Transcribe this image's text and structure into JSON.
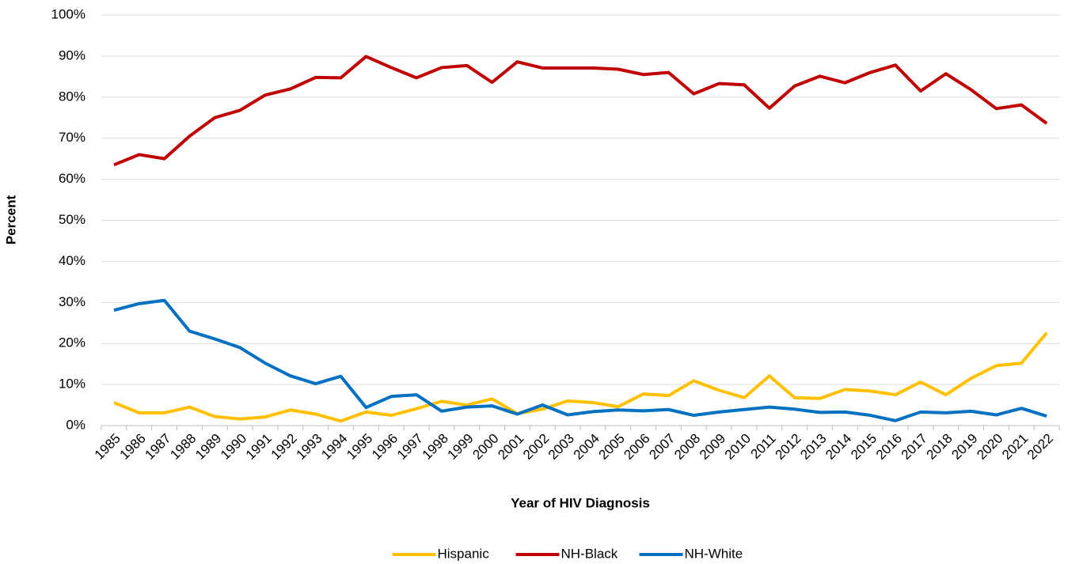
{
  "chart_data": {
    "type": "line",
    "x_label": "Year of HIV Diagnosis",
    "y_label": "Percent",
    "categories": [
      "1985",
      "1986",
      "1987",
      "1988",
      "1989",
      "1990",
      "1991",
      "1992",
      "1993",
      "1994",
      "1995",
      "1996",
      "1997",
      "1998",
      "1999",
      "2000",
      "2001",
      "2002",
      "2003",
      "2004",
      "2005",
      "2006",
      "2007",
      "2008",
      "2009",
      "2010",
      "2011",
      "2012",
      "2013",
      "2014",
      "2015",
      "2016",
      "2017",
      "2018",
      "2019",
      "2020",
      "2021",
      "2022"
    ],
    "series": [
      {
        "name": "Hispanic",
        "color": "#ffc000",
        "values": [
          5.6,
          3.1,
          3.1,
          4.5,
          2.2,
          1.6,
          2.1,
          3.8,
          2.8,
          1.1,
          3.3,
          2.5,
          4.1,
          5.9,
          5.0,
          6.5,
          2.9,
          4.0,
          6.0,
          5.6,
          4.6,
          7.7,
          7.3,
          10.9,
          8.6,
          6.8,
          12.1,
          6.8,
          6.6,
          8.8,
          8.4,
          7.5,
          10.6,
          7.5,
          11.5,
          14.6,
          15.2,
          22.6
        ]
      },
      {
        "name": "NH-Black",
        "color": "#c00000",
        "values": [
          63.5,
          66.0,
          65.0,
          70.5,
          75.0,
          76.8,
          80.5,
          82.0,
          84.8,
          84.7,
          89.9,
          87.2,
          84.7,
          87.2,
          87.7,
          83.6,
          88.6,
          87.1,
          87.1,
          87.1,
          86.8,
          85.5,
          86.0,
          80.8,
          83.3,
          83.0,
          77.3,
          82.7,
          85.1,
          83.5,
          86.0,
          87.8,
          81.5,
          85.7,
          81.8,
          77.2,
          78.1,
          73.6
        ]
      },
      {
        "name": "NH-White",
        "color": "#0070c0",
        "values": [
          28.1,
          29.7,
          30.5,
          23.0,
          21.1,
          19.0,
          15.2,
          12.1,
          10.2,
          12.0,
          4.4,
          7.1,
          7.5,
          3.5,
          4.5,
          4.8,
          2.8,
          5.0,
          2.6,
          3.4,
          3.8,
          3.6,
          3.9,
          2.5,
          3.3,
          3.9,
          4.5,
          4.0,
          3.2,
          3.3,
          2.5,
          1.2,
          3.3,
          3.1,
          3.5,
          2.6,
          4.2,
          2.3
        ]
      }
    ],
    "ylim": [
      0,
      100
    ],
    "yticks": [
      {
        "value": 0,
        "label": "0%"
      },
      {
        "value": 10,
        "label": "10%"
      },
      {
        "value": 20,
        "label": "20%"
      },
      {
        "value": 30,
        "label": "30%"
      },
      {
        "value": 40,
        "label": "40%"
      },
      {
        "value": 50,
        "label": "50%"
      },
      {
        "value": 60,
        "label": "60%"
      },
      {
        "value": 70,
        "label": "70%"
      },
      {
        "value": 80,
        "label": "80%"
      },
      {
        "value": 90,
        "label": "90%"
      },
      {
        "value": 100,
        "label": "100%"
      }
    ],
    "grid": true,
    "legend": "bottom"
  }
}
